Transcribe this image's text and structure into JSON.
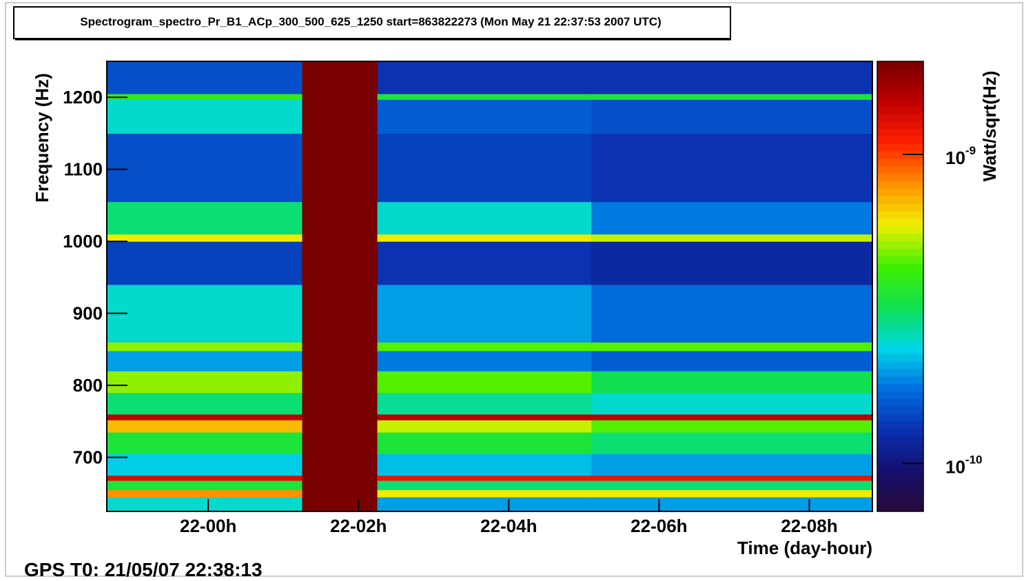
{
  "chart_data": {
    "type": "heatmap",
    "title": "Spectrogram_spectro_Pr_B1_ACp_300_500_625_1250 start=863822273 (Mon May 21 22:37:53 2007 UTC)",
    "x_label": "Time (day-hour)",
    "y_label": "Frequency (Hz)",
    "z_label": "Watt/sqrt(Hz)",
    "footer": "GPS T0: 21/05/07 22:38:13",
    "x": [
      22.65,
      25.25,
      26.25,
      29.1,
      32.84
    ],
    "y": [
      625,
      645,
      655,
      668,
      675,
      705,
      735,
      752,
      760,
      790,
      820,
      848,
      860,
      940,
      1000,
      1010,
      1055,
      1150,
      1197,
      1205,
      1250
    ],
    "values": [
      [
        2.5e-10,
        2e-09,
        2e-10,
        2e-10
      ],
      [
        8e-10,
        2e-09,
        6e-10,
        6e-10
      ],
      [
        3.5e-10,
        2e-09,
        3e-10,
        3e-10
      ],
      [
        1.3e-09,
        2e-09,
        1.2e-09,
        1.2e-09
      ],
      [
        2.3e-10,
        2e-09,
        2.2e-10,
        2e-10
      ],
      [
        3.5e-10,
        2e-09,
        3.5e-10,
        3e-10
      ],
      [
        7e-10,
        2e-09,
        5.5e-10,
        4.5e-10
      ],
      [
        1.5e-09,
        2e-09,
        1.5e-09,
        1.5e-09
      ],
      [
        3e-10,
        2e-09,
        2.8e-10,
        2.5e-10
      ],
      [
        5e-10,
        2e-09,
        4.5e-10,
        3.2e-10
      ],
      [
        2e-10,
        2e-09,
        1.8e-10,
        1.6e-10
      ],
      [
        5e-10,
        2e-09,
        4.5e-10,
        4.5e-10
      ],
      [
        2.5e-10,
        2e-09,
        2e-10,
        1.7e-10
      ],
      [
        1.4e-10,
        2e-09,
        1.3e-10,
        1.2e-10
      ],
      [
        6e-10,
        2e-09,
        6e-10,
        5.5e-10
      ],
      [
        3e-10,
        2e-09,
        2.5e-10,
        1.8e-10
      ],
      [
        1.5e-10,
        2e-09,
        1.4e-10,
        1.3e-10
      ],
      [
        2.5e-10,
        2e-09,
        1.6e-10,
        1.5e-10
      ],
      [
        4e-10,
        2e-09,
        3.5e-10,
        3.5e-10
      ],
      [
        1.5e-10,
        2e-09,
        1.3e-10,
        1.3e-10
      ]
    ],
    "xlim": [
      22.65,
      32.84
    ],
    "xticks": [
      {
        "value": 24,
        "label": "22-00h"
      },
      {
        "value": 26,
        "label": "22-02h"
      },
      {
        "value": 28,
        "label": "22-04h"
      },
      {
        "value": 30,
        "label": "22-06h"
      },
      {
        "value": 32,
        "label": "22-08h"
      }
    ],
    "ylim": [
      625,
      1250
    ],
    "yticks": [
      700,
      800,
      900,
      1000,
      1100,
      1200
    ],
    "zlim": [
      7e-11,
      2e-09
    ],
    "zscale": "log",
    "zticks": [
      {
        "value": 1e-09,
        "label": "10",
        "exponent": "-9"
      },
      {
        "value": 1e-10,
        "label": "10",
        "exponent": "-10"
      }
    ],
    "colormap": [
      "#2a0a3a",
      "#14106e",
      "#0a30b0",
      "#0070e0",
      "#00d8e8",
      "#10e050",
      "#40f000",
      "#f0f000",
      "#ff9000",
      "#ff2000",
      "#c00000",
      "#780000"
    ]
  }
}
